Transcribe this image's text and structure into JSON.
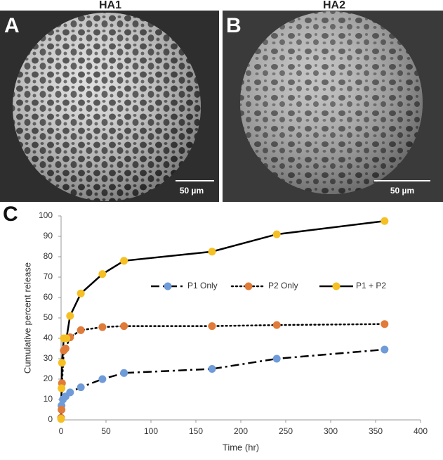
{
  "panels": [
    {
      "label": "A",
      "title": "HA1",
      "scale_bar": "50 µm"
    },
    {
      "label": "B",
      "title": "HA2",
      "scale_bar": "50 µm"
    }
  ],
  "chart_data": {
    "type": "line",
    "panel_label": "C",
    "x_label": "Time (hr)",
    "y_label": "Cumulative percent release",
    "xlim": [
      0,
      400
    ],
    "xticks": [
      0,
      50,
      100,
      150,
      200,
      250,
      300,
      350,
      400
    ],
    "ylim": [
      0,
      100
    ],
    "yticks": [
      0,
      10,
      20,
      30,
      40,
      50,
      60,
      70,
      80,
      90,
      100
    ],
    "grid": false,
    "line_color": "#000000",
    "series": [
      {
        "name": "P1 Only",
        "color": "#6f9bd8",
        "dash": "dashdot",
        "x": [
          0,
          0.5,
          2,
          5,
          10,
          22,
          46,
          70,
          168,
          240,
          360
        ],
        "values": [
          1,
          7,
          10,
          11.5,
          13.5,
          16,
          20,
          23,
          25,
          30,
          34.5
        ]
      },
      {
        "name": "P2 Only",
        "color": "#e07b39",
        "dash": "dotted",
        "x": [
          0,
          0.5,
          1,
          3,
          5,
          10,
          22,
          46,
          70,
          168,
          240,
          360
        ],
        "values": [
          1,
          5,
          18,
          34,
          35,
          40.5,
          44,
          45.5,
          46,
          46,
          46.5,
          47
        ]
      },
      {
        "name": "P1 + P2",
        "color": "#f5c024",
        "dash": "solid",
        "x": [
          0,
          0.5,
          1,
          3,
          6,
          10,
          22,
          46,
          70,
          168,
          240,
          360
        ],
        "values": [
          0.5,
          15.5,
          28,
          40,
          40,
          51,
          62,
          71.5,
          78,
          82.5,
          91,
          97.5
        ]
      }
    ]
  }
}
